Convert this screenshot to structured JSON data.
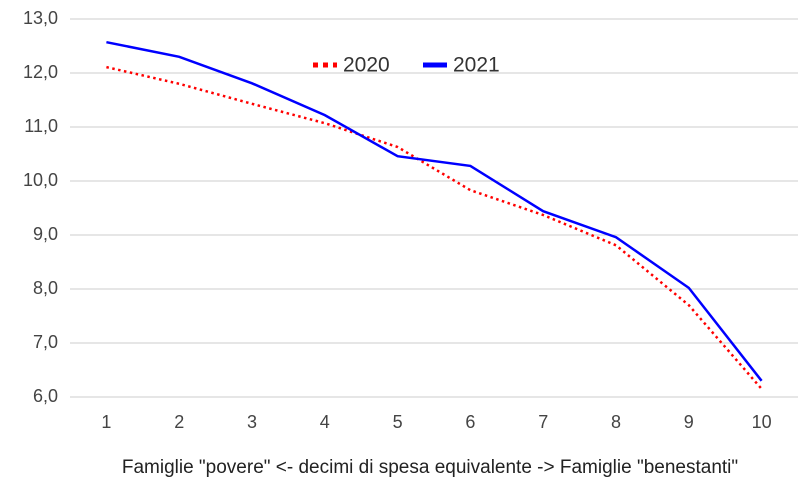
{
  "chart_data": {
    "type": "line",
    "xlabel": "Famiglie \"povere\" <- decimi di spesa equivalente -> Famiglie \"benestanti\"",
    "categories": [
      "1",
      "2",
      "3",
      "4",
      "5",
      "6",
      "7",
      "8",
      "9",
      "10"
    ],
    "series": [
      {
        "name": "2020",
        "color": "#ff0000",
        "style": "dotted",
        "values": [
          12.11,
          11.8,
          11.43,
          11.07,
          10.63,
          9.83,
          9.37,
          8.81,
          7.7,
          6.15
        ]
      },
      {
        "name": "2021",
        "color": "#0000ff",
        "style": "solid",
        "values": [
          12.57,
          12.3,
          11.81,
          11.22,
          10.46,
          10.28,
          9.44,
          8.96,
          8.02,
          6.3
        ]
      }
    ],
    "ylim": [
      6,
      13
    ],
    "yticks": [
      {
        "value": 6,
        "label": "6,0"
      },
      {
        "value": 7,
        "label": "7,0"
      },
      {
        "value": 8,
        "label": "8,0"
      },
      {
        "value": 9,
        "label": "9,0"
      },
      {
        "value": 10,
        "label": "10,0"
      },
      {
        "value": 11,
        "label": "11,0"
      },
      {
        "value": 12,
        "label": "12,0"
      },
      {
        "value": 13,
        "label": "13,0"
      }
    ],
    "grid": true,
    "legend": "top"
  }
}
